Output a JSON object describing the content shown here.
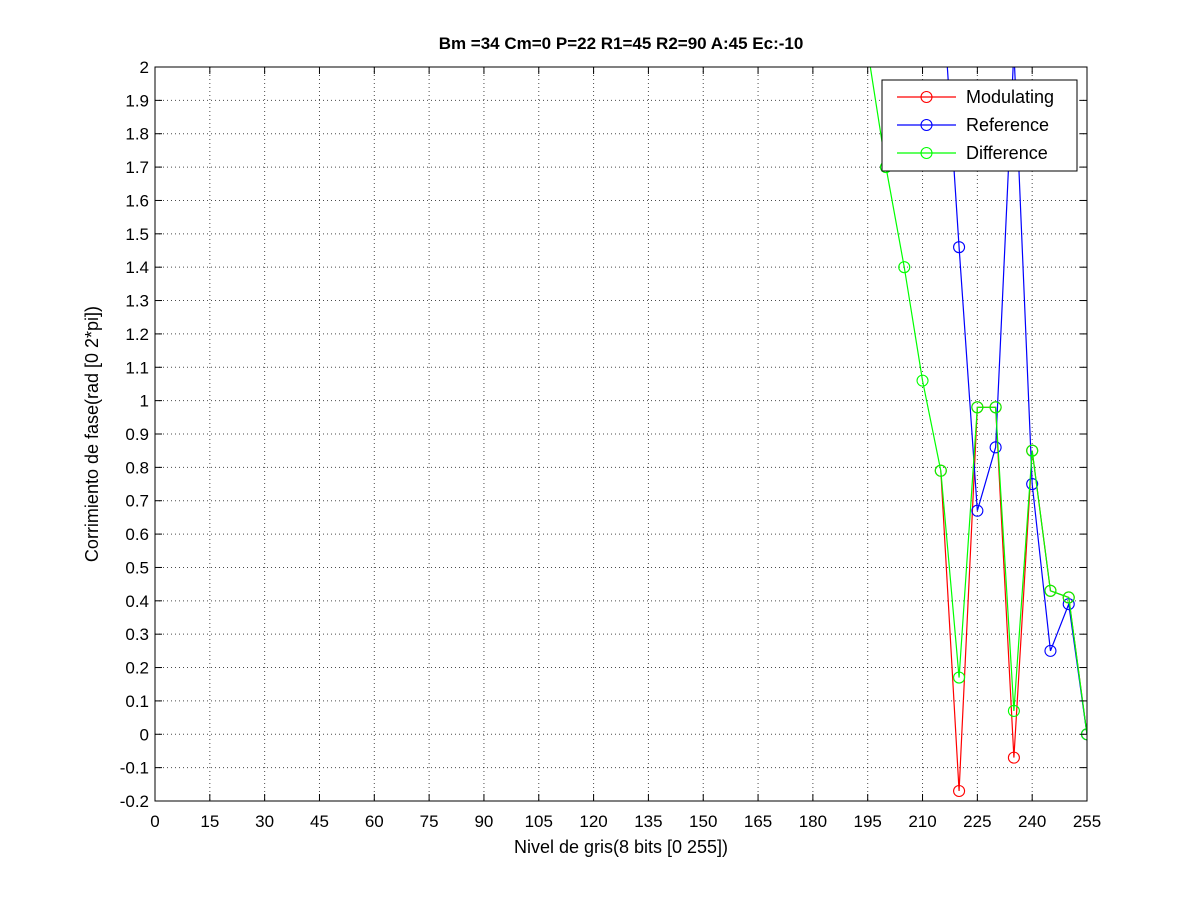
{
  "chart_data": {
    "type": "line",
    "title": "Bm =34  Cm=0  P=22  R1=45  R2=90  A:45  Ec:-10",
    "xlabel": "Nivel de gris(8 bits [0 255])",
    "ylabel": "Corrimiento de fase(rad [0 2*pi])",
    "xlim": [
      0,
      255
    ],
    "ylim": [
      -0.2,
      2
    ],
    "xticks": [
      0,
      15,
      30,
      45,
      60,
      75,
      90,
      105,
      120,
      135,
      150,
      165,
      180,
      195,
      210,
      225,
      240,
      255
    ],
    "yticks": [
      "-0.2",
      "-0.1",
      "0",
      "0.1",
      "0.2",
      "0.3",
      "0.4",
      "0.5",
      "0.6",
      "0.7",
      "0.8",
      "0.9",
      "1",
      "1.1",
      "1.2",
      "1.3",
      "1.4",
      "1.5",
      "1.6",
      "1.7",
      "1.8",
      "1.9",
      "2"
    ],
    "grid": true,
    "legend_position": "top-right",
    "series": [
      {
        "name": "Modulating",
        "color": "#ff0000",
        "x": [
          215,
          220,
          225,
          230,
          235,
          240,
          245,
          250,
          255
        ],
        "y": [
          0.79,
          -0.17,
          0.98,
          0.98,
          -0.07,
          0.85,
          0.43,
          0.41,
          0.0
        ]
      },
      {
        "name": "Reference",
        "color": "#0000ff",
        "x": [
          215,
          220,
          225,
          230,
          235,
          240,
          245,
          250,
          255
        ],
        "y": [
          2.3,
          1.46,
          0.67,
          0.86,
          2.05,
          0.75,
          0.25,
          0.39,
          0.0
        ]
      },
      {
        "name": "Difference",
        "color": "#00ff00",
        "x": [
          195,
          200,
          205,
          210,
          215,
          220,
          225,
          230,
          235,
          240,
          245,
          250,
          255
        ],
        "y": [
          2.05,
          1.7,
          1.4,
          1.06,
          0.79,
          0.17,
          0.98,
          0.98,
          0.07,
          0.85,
          0.43,
          0.41,
          0.0
        ]
      }
    ]
  }
}
